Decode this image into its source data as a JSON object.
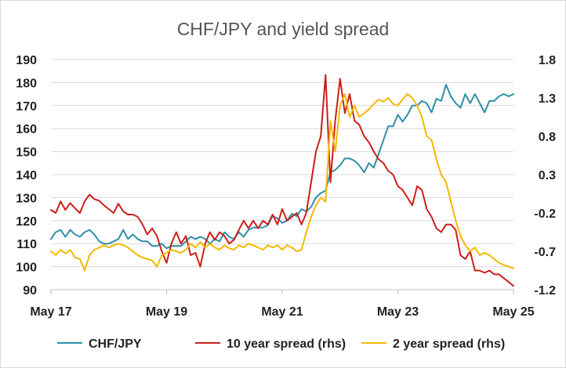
{
  "chart_data": {
    "type": "line",
    "title": "CHF/JPY and yield spread",
    "xlabel": "",
    "ylabel": "",
    "ylabel_right": "",
    "x_start": "2017-05",
    "x_end": "2025-05",
    "x_ticks": [
      "May 17",
      "May 19",
      "May 21",
      "May 23",
      "May 25"
    ],
    "left_axis": {
      "ylim": [
        90,
        190
      ],
      "ticks": [
        "90",
        "100",
        "110",
        "120",
        "130",
        "140",
        "150",
        "160",
        "170",
        "180",
        "190"
      ]
    },
    "right_axis": {
      "ylim": [
        -1.2,
        1.8
      ],
      "ticks": [
        "-1.2",
        "-0.7",
        "-0.2",
        "0.3",
        "0.8",
        "1.3",
        "1.8"
      ]
    },
    "legend_position": "bottom",
    "grid": "horizontal",
    "series": [
      {
        "name": "CHF/JPY",
        "axis": "left",
        "color": "#2e8fa8",
        "x": [
          "2017-05",
          "2017-06",
          "2017-07",
          "2017-08",
          "2017-09",
          "2017-10",
          "2017-11",
          "2017-12",
          "2018-01",
          "2018-02",
          "2018-03",
          "2018-04",
          "2018-05",
          "2018-06",
          "2018-07",
          "2018-08",
          "2018-09",
          "2018-10",
          "2018-11",
          "2018-12",
          "2019-01",
          "2019-02",
          "2019-03",
          "2019-04",
          "2019-05",
          "2019-06",
          "2019-07",
          "2019-08",
          "2019-09",
          "2019-10",
          "2019-11",
          "2019-12",
          "2020-01",
          "2020-02",
          "2020-03",
          "2020-04",
          "2020-05",
          "2020-06",
          "2020-07",
          "2020-08",
          "2020-09",
          "2020-10",
          "2020-11",
          "2020-12",
          "2021-01",
          "2021-02",
          "2021-03",
          "2021-04",
          "2021-05",
          "2021-06",
          "2021-07",
          "2021-08",
          "2021-09",
          "2021-10",
          "2021-11",
          "2021-12",
          "2022-01",
          "2022-02",
          "2022-03",
          "2022-04",
          "2022-05",
          "2022-06",
          "2022-07",
          "2022-08",
          "2022-09",
          "2022-10",
          "2022-11",
          "2022-12",
          "2023-01",
          "2023-02",
          "2023-03",
          "2023-04",
          "2023-05",
          "2023-06",
          "2023-07",
          "2023-08",
          "2023-09",
          "2023-10",
          "2023-11",
          "2023-12",
          "2024-01",
          "2024-02",
          "2024-03",
          "2024-04",
          "2024-05",
          "2024-06",
          "2024-07",
          "2024-08",
          "2024-09",
          "2024-10",
          "2024-11",
          "2024-12",
          "2025-01",
          "2025-02",
          "2025-03",
          "2025-04",
          "2025-05"
        ],
        "values": [
          112,
          115,
          116,
          113,
          116,
          114,
          113,
          115,
          116,
          114,
          111,
          110,
          110,
          111,
          112,
          116,
          112,
          114,
          112,
          111,
          111,
          109,
          109,
          110,
          108,
          109,
          109,
          109,
          111,
          113,
          112,
          113,
          112,
          110,
          112,
          111,
          115,
          113,
          112,
          115,
          113,
          116,
          117,
          117,
          117,
          118,
          122,
          121,
          119,
          120,
          123,
          122,
          125,
          124,
          126,
          130,
          132,
          133,
          141,
          142,
          144,
          147,
          147,
          146,
          144,
          141,
          145,
          143,
          149,
          155,
          161,
          161,
          166,
          163,
          166,
          170,
          170,
          172,
          171,
          167,
          173,
          172,
          179,
          174,
          171,
          169,
          175,
          171,
          175,
          171,
          167,
          172,
          172,
          174,
          175,
          174,
          175
        ]
      },
      {
        "name": "10 year spread (rhs)",
        "axis": "right",
        "color": "#cc1f1a",
        "x": [
          "2017-05",
          "2017-06",
          "2017-07",
          "2017-08",
          "2017-09",
          "2017-10",
          "2017-11",
          "2017-12",
          "2018-01",
          "2018-02",
          "2018-03",
          "2018-04",
          "2018-05",
          "2018-06",
          "2018-07",
          "2018-08",
          "2018-09",
          "2018-10",
          "2018-11",
          "2018-12",
          "2019-01",
          "2019-02",
          "2019-03",
          "2019-04",
          "2019-05",
          "2019-06",
          "2019-07",
          "2019-08",
          "2019-09",
          "2019-10",
          "2019-11",
          "2019-12",
          "2020-01",
          "2020-02",
          "2020-03",
          "2020-04",
          "2020-05",
          "2020-06",
          "2020-07",
          "2020-08",
          "2020-09",
          "2020-10",
          "2020-11",
          "2020-12",
          "2021-01",
          "2021-02",
          "2021-03",
          "2021-04",
          "2021-05",
          "2021-06",
          "2021-07",
          "2021-08",
          "2021-09",
          "2021-10",
          "2021-11",
          "2021-12",
          "2022-01",
          "2022-02",
          "2022-03",
          "2022-04",
          "2022-05",
          "2022-06",
          "2022-07",
          "2022-08",
          "2022-09",
          "2022-10",
          "2022-11",
          "2022-12",
          "2023-01",
          "2023-02",
          "2023-03",
          "2023-04",
          "2023-05",
          "2023-06",
          "2023-07",
          "2023-08",
          "2023-09",
          "2023-10",
          "2023-11",
          "2023-12",
          "2024-01",
          "2024-02",
          "2024-03",
          "2024-04",
          "2024-05",
          "2024-06",
          "2024-07",
          "2024-08",
          "2024-09",
          "2024-10",
          "2024-11",
          "2024-12",
          "2025-01",
          "2025-02",
          "2025-03",
          "2025-04",
          "2025-05"
        ],
        "values": [
          -0.16,
          -0.2,
          -0.05,
          -0.16,
          -0.07,
          -0.14,
          -0.2,
          -0.05,
          0.04,
          -0.02,
          -0.04,
          -0.1,
          -0.15,
          -0.2,
          -0.08,
          -0.18,
          -0.22,
          -0.22,
          -0.25,
          -0.35,
          -0.48,
          -0.4,
          -0.5,
          -0.7,
          -0.85,
          -0.6,
          -0.45,
          -0.6,
          -0.5,
          -0.75,
          -0.72,
          -0.9,
          -0.6,
          -0.45,
          -0.55,
          -0.45,
          -0.5,
          -0.6,
          -0.55,
          -0.42,
          -0.3,
          -0.4,
          -0.3,
          -0.4,
          -0.3,
          -0.35,
          -0.22,
          -0.35,
          -0.15,
          -0.3,
          -0.25,
          -0.2,
          -0.35,
          -0.2,
          0.2,
          0.6,
          0.8,
          1.6,
          0.2,
          1.0,
          1.55,
          1.1,
          1.35,
          1.0,
          0.95,
          0.8,
          0.72,
          0.6,
          0.5,
          0.45,
          0.35,
          0.3,
          0.15,
          0.1,
          0.0,
          -0.1,
          0.15,
          0.1,
          -0.15,
          -0.25,
          -0.4,
          -0.45,
          -0.35,
          -0.35,
          -0.42,
          -0.75,
          -0.8,
          -0.7,
          -0.95,
          -0.95,
          -0.98,
          -0.95,
          -1.0,
          -1.0,
          -1.05,
          -1.1,
          -1.15
        ]
      },
      {
        "name": "2 year spread (rhs)",
        "axis": "right",
        "color": "#f5b800",
        "x": [
          "2017-05",
          "2017-06",
          "2017-07",
          "2017-08",
          "2017-09",
          "2017-10",
          "2017-11",
          "2017-12",
          "2018-01",
          "2018-02",
          "2018-03",
          "2018-04",
          "2018-05",
          "2018-06",
          "2018-07",
          "2018-08",
          "2018-09",
          "2018-10",
          "2018-11",
          "2018-12",
          "2019-01",
          "2019-02",
          "2019-03",
          "2019-04",
          "2019-05",
          "2019-06",
          "2019-07",
          "2019-08",
          "2019-09",
          "2019-10",
          "2019-11",
          "2019-12",
          "2020-01",
          "2020-02",
          "2020-03",
          "2020-04",
          "2020-05",
          "2020-06",
          "2020-07",
          "2020-08",
          "2020-09",
          "2020-10",
          "2020-11",
          "2020-12",
          "2021-01",
          "2021-02",
          "2021-03",
          "2021-04",
          "2021-05",
          "2021-06",
          "2021-07",
          "2021-08",
          "2021-09",
          "2021-10",
          "2021-11",
          "2021-12",
          "2022-01",
          "2022-02",
          "2022-03",
          "2022-04",
          "2022-05",
          "2022-06",
          "2022-07",
          "2022-08",
          "2022-09",
          "2022-10",
          "2022-11",
          "2022-12",
          "2023-01",
          "2023-02",
          "2023-03",
          "2023-04",
          "2023-05",
          "2023-06",
          "2023-07",
          "2023-08",
          "2023-09",
          "2023-10",
          "2023-11",
          "2023-12",
          "2024-01",
          "2024-02",
          "2024-03",
          "2024-04",
          "2024-05",
          "2024-06",
          "2024-07",
          "2024-08",
          "2024-09",
          "2024-10",
          "2024-11",
          "2024-12",
          "2025-01",
          "2025-02",
          "2025-03",
          "2025-04",
          "2025-05"
        ],
        "values": [
          -0.7,
          -0.75,
          -0.68,
          -0.73,
          -0.68,
          -0.78,
          -0.8,
          -0.95,
          -0.75,
          -0.68,
          -0.65,
          -0.62,
          -0.65,
          -0.62,
          -0.6,
          -0.62,
          -0.65,
          -0.7,
          -0.75,
          -0.78,
          -0.8,
          -0.82,
          -0.9,
          -0.75,
          -0.72,
          -0.68,
          -0.7,
          -0.72,
          -0.68,
          -0.6,
          -0.65,
          -0.58,
          -0.65,
          -0.6,
          -0.65,
          -0.68,
          -0.62,
          -0.66,
          -0.68,
          -0.62,
          -0.65,
          -0.6,
          -0.62,
          -0.65,
          -0.68,
          -0.62,
          -0.65,
          -0.62,
          -0.68,
          -0.62,
          -0.65,
          -0.7,
          -0.68,
          -0.45,
          -0.25,
          -0.1,
          0.0,
          -0.05,
          1.0,
          0.6,
          1.2,
          1.35,
          1.05,
          1.2,
          1.05,
          1.1,
          1.15,
          1.22,
          1.28,
          1.25,
          1.3,
          1.22,
          1.2,
          1.28,
          1.35,
          1.3,
          1.2,
          1.05,
          0.8,
          0.75,
          0.5,
          0.3,
          0.2,
          -0.05,
          -0.3,
          -0.5,
          -0.62,
          -0.7,
          -0.65,
          -0.75,
          -0.72,
          -0.75,
          -0.8,
          -0.85,
          -0.88,
          -0.9,
          -0.92
        ]
      }
    ]
  }
}
